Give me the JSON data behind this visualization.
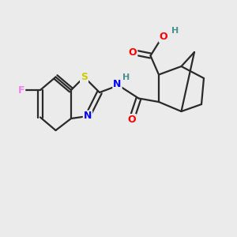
{
  "background_color": "#ebebeb",
  "bond_color": "#2a2a2a",
  "atom_colors": {
    "F": "#ee82ee",
    "S": "#cccc00",
    "N": "#0000ff",
    "O": "#ff0000",
    "H": "#4a9090",
    "C": "#2a2a2a"
  },
  "figsize": [
    3.0,
    3.0
  ],
  "dpi": 100
}
